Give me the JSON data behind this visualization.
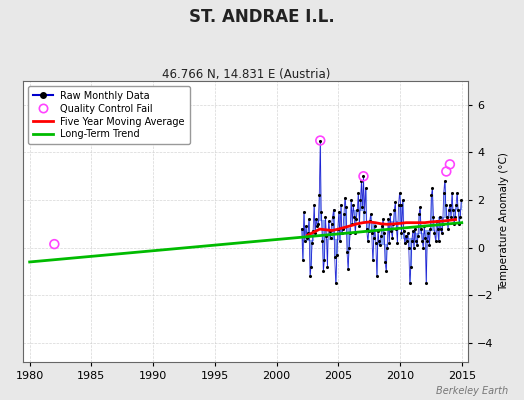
{
  "title": "ST. ANDRAE I.L.",
  "subtitle": "46.766 N, 14.831 E (Austria)",
  "ylabel": "Temperature Anomaly (°C)",
  "xlim": [
    1979.5,
    2015.5
  ],
  "ylim": [
    -4.8,
    7.0
  ],
  "yticks": [
    -4,
    -2,
    0,
    2,
    4,
    6
  ],
  "xticks": [
    1980,
    1985,
    1990,
    1995,
    2000,
    2005,
    2010,
    2015
  ],
  "background_color": "#e8e8e8",
  "plot_bg_color": "#ffffff",
  "watermark": "Berkeley Earth",
  "monthly_data": [
    [
      2002.04,
      0.8
    ],
    [
      2002.12,
      -0.5
    ],
    [
      2002.21,
      1.5
    ],
    [
      2002.29,
      0.3
    ],
    [
      2002.38,
      0.9
    ],
    [
      2002.46,
      0.4
    ],
    [
      2002.54,
      0.6
    ],
    [
      2002.62,
      1.2
    ],
    [
      2002.71,
      -1.2
    ],
    [
      2002.79,
      -0.8
    ],
    [
      2002.88,
      0.2
    ],
    [
      2002.96,
      0.7
    ],
    [
      2003.04,
      1.8
    ],
    [
      2003.12,
      0.6
    ],
    [
      2003.21,
      1.2
    ],
    [
      2003.29,
      0.9
    ],
    [
      2003.38,
      1.0
    ],
    [
      2003.46,
      2.2
    ],
    [
      2003.54,
      4.5
    ],
    [
      2003.62,
      1.5
    ],
    [
      2003.71,
      0.3
    ],
    [
      2003.79,
      -1.0
    ],
    [
      2003.88,
      -0.5
    ],
    [
      2003.96,
      1.3
    ],
    [
      2004.04,
      0.5
    ],
    [
      2004.12,
      -0.8
    ],
    [
      2004.21,
      1.1
    ],
    [
      2004.29,
      0.7
    ],
    [
      2004.38,
      0.4
    ],
    [
      2004.46,
      1.0
    ],
    [
      2004.54,
      1.3
    ],
    [
      2004.62,
      1.6
    ],
    [
      2004.71,
      -0.4
    ],
    [
      2004.79,
      -1.5
    ],
    [
      2004.88,
      -0.3
    ],
    [
      2004.96,
      0.8
    ],
    [
      2005.04,
      1.5
    ],
    [
      2005.12,
      0.3
    ],
    [
      2005.21,
      1.8
    ],
    [
      2005.29,
      0.6
    ],
    [
      2005.38,
      0.8
    ],
    [
      2005.46,
      1.4
    ],
    [
      2005.54,
      2.1
    ],
    [
      2005.62,
      1.7
    ],
    [
      2005.71,
      -0.2
    ],
    [
      2005.79,
      -0.9
    ],
    [
      2005.88,
      0.0
    ],
    [
      2005.96,
      0.6
    ],
    [
      2006.04,
      2.0
    ],
    [
      2006.12,
      1.0
    ],
    [
      2006.21,
      1.8
    ],
    [
      2006.29,
      1.3
    ],
    [
      2006.38,
      0.6
    ],
    [
      2006.46,
      1.2
    ],
    [
      2006.54,
      1.6
    ],
    [
      2006.62,
      2.3
    ],
    [
      2006.71,
      0.9
    ],
    [
      2006.79,
      2.0
    ],
    [
      2006.88,
      2.8
    ],
    [
      2006.96,
      1.7
    ],
    [
      2007.04,
      3.0
    ],
    [
      2007.12,
      1.5
    ],
    [
      2007.21,
      2.5
    ],
    [
      2007.29,
      0.8
    ],
    [
      2007.38,
      0.3
    ],
    [
      2007.46,
      0.7
    ],
    [
      2007.54,
      1.1
    ],
    [
      2007.62,
      1.4
    ],
    [
      2007.71,
      0.6
    ],
    [
      2007.79,
      -0.5
    ],
    [
      2007.88,
      0.4
    ],
    [
      2007.96,
      0.9
    ],
    [
      2008.04,
      0.2
    ],
    [
      2008.12,
      -1.2
    ],
    [
      2008.21,
      0.7
    ],
    [
      2008.29,
      0.3
    ],
    [
      2008.38,
      0.1
    ],
    [
      2008.46,
      0.5
    ],
    [
      2008.54,
      0.9
    ],
    [
      2008.62,
      1.2
    ],
    [
      2008.71,
      0.6
    ],
    [
      2008.79,
      -0.6
    ],
    [
      2008.88,
      -1.0
    ],
    [
      2008.96,
      0.0
    ],
    [
      2009.04,
      1.2
    ],
    [
      2009.12,
      0.2
    ],
    [
      2009.21,
      1.4
    ],
    [
      2009.29,
      0.7
    ],
    [
      2009.38,
      0.4
    ],
    [
      2009.46,
      1.0
    ],
    [
      2009.54,
      1.6
    ],
    [
      2009.62,
      1.9
    ],
    [
      2009.71,
      0.8
    ],
    [
      2009.79,
      0.2
    ],
    [
      2009.88,
      1.8
    ],
    [
      2009.96,
      2.3
    ],
    [
      2010.04,
      1.8
    ],
    [
      2010.12,
      0.6
    ],
    [
      2010.21,
      2.0
    ],
    [
      2010.29,
      0.7
    ],
    [
      2010.38,
      0.2
    ],
    [
      2010.46,
      0.5
    ],
    [
      2010.54,
      0.3
    ],
    [
      2010.62,
      0.6
    ],
    [
      2010.71,
      0.0
    ],
    [
      2010.79,
      -1.5
    ],
    [
      2010.88,
      -0.8
    ],
    [
      2010.96,
      0.3
    ],
    [
      2011.04,
      0.7
    ],
    [
      2011.12,
      0.0
    ],
    [
      2011.21,
      0.8
    ],
    [
      2011.29,
      0.3
    ],
    [
      2011.38,
      0.1
    ],
    [
      2011.46,
      0.5
    ],
    [
      2011.54,
      1.4
    ],
    [
      2011.62,
      1.7
    ],
    [
      2011.71,
      0.8
    ],
    [
      2011.79,
      0.3
    ],
    [
      2011.88,
      0.0
    ],
    [
      2011.96,
      0.9
    ],
    [
      2012.04,
      0.4
    ],
    [
      2012.12,
      -1.5
    ],
    [
      2012.21,
      0.3
    ],
    [
      2012.29,
      0.6
    ],
    [
      2012.38,
      0.1
    ],
    [
      2012.46,
      0.8
    ],
    [
      2012.54,
      2.2
    ],
    [
      2012.62,
      2.5
    ],
    [
      2012.71,
      1.3
    ],
    [
      2012.79,
      0.6
    ],
    [
      2012.88,
      0.3
    ],
    [
      2012.96,
      1.1
    ],
    [
      2013.04,
      0.8
    ],
    [
      2013.12,
      0.3
    ],
    [
      2013.21,
      1.3
    ],
    [
      2013.29,
      0.8
    ],
    [
      2013.38,
      0.6
    ],
    [
      2013.46,
      1.0
    ],
    [
      2013.54,
      2.3
    ],
    [
      2013.62,
      2.8
    ],
    [
      2013.71,
      1.8
    ],
    [
      2013.79,
      1.3
    ],
    [
      2013.88,
      0.8
    ],
    [
      2013.96,
      1.6
    ],
    [
      2014.04,
      1.8
    ],
    [
      2014.12,
      1.3
    ],
    [
      2014.21,
      2.3
    ],
    [
      2014.29,
      1.6
    ],
    [
      2014.38,
      1.0
    ],
    [
      2014.46,
      1.3
    ],
    [
      2014.54,
      1.8
    ],
    [
      2014.62,
      2.3
    ],
    [
      2014.71,
      1.6
    ],
    [
      2014.79,
      1.0
    ],
    [
      2014.88,
      1.3
    ],
    [
      2014.96,
      2.0
    ]
  ],
  "moving_avg": [
    [
      2002.5,
      0.52
    ],
    [
      2003.0,
      0.65
    ],
    [
      2003.5,
      0.78
    ],
    [
      2004.0,
      0.75
    ],
    [
      2004.5,
      0.72
    ],
    [
      2005.0,
      0.78
    ],
    [
      2005.5,
      0.85
    ],
    [
      2006.0,
      0.92
    ],
    [
      2006.5,
      1.0
    ],
    [
      2007.0,
      1.05
    ],
    [
      2007.5,
      1.08
    ],
    [
      2008.0,
      1.05
    ],
    [
      2008.5,
      1.0
    ],
    [
      2009.0,
      0.98
    ],
    [
      2009.5,
      1.0
    ],
    [
      2010.0,
      1.02
    ],
    [
      2010.5,
      1.05
    ],
    [
      2011.0,
      1.05
    ],
    [
      2011.5,
      1.05
    ],
    [
      2012.0,
      1.05
    ],
    [
      2012.5,
      1.08
    ],
    [
      2013.0,
      1.1
    ],
    [
      2013.5,
      1.12
    ],
    [
      2014.0,
      1.15
    ],
    [
      2014.5,
      1.18
    ]
  ],
  "trend_line": [
    [
      1980,
      -0.6
    ],
    [
      2015,
      1.05
    ]
  ],
  "qc_fail_points": [
    [
      1982.0,
      0.15
    ],
    [
      2003.54,
      4.5
    ],
    [
      2007.04,
      3.0
    ],
    [
      2013.75,
      3.2
    ],
    [
      2014.04,
      3.5
    ]
  ],
  "colors": {
    "monthly_line": "#0000cc",
    "monthly_dot": "#000000",
    "monthly_vline": "#7799ee",
    "moving_avg": "#ff0000",
    "trend": "#00bb00",
    "qc_fail": "#ff44ff",
    "grid": "#cccccc",
    "grid_minor": "#dddddd"
  }
}
